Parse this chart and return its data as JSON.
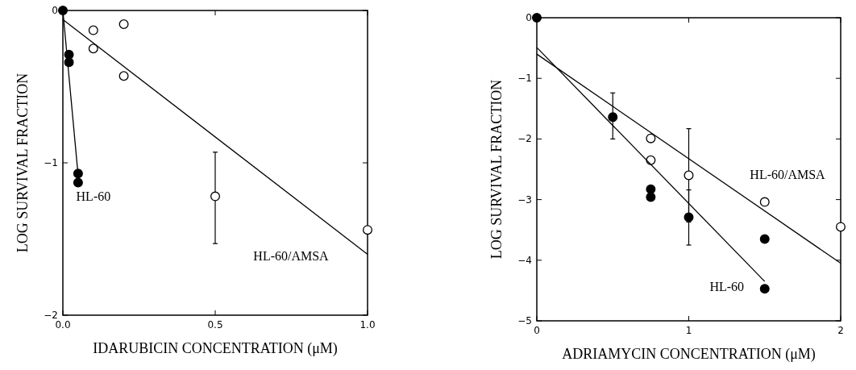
{
  "chart_data": [
    {
      "type": "scatter",
      "xlabel": "IDARUBICIN CONCENTRATION (μM)",
      "ylabel": "LOG SURVIVAL FRACTION",
      "xlim": [
        0,
        1
      ],
      "ylim": [
        -2,
        0
      ],
      "xticks": [
        {
          "value": 0,
          "label": "0.0"
        },
        {
          "value": 0.5,
          "label": "0.5"
        },
        {
          "value": 1,
          "label": "1.0"
        }
      ],
      "yticks": [
        -2,
        -1,
        0
      ],
      "marker": "circle",
      "grid": false,
      "series": [
        {
          "color": "#000000",
          "x": [
            0,
            0.02,
            0.02,
            0.05,
            0.05
          ],
          "values": [
            0,
            -0.29,
            -0.34,
            -1.07,
            -1.13
          ]
        },
        {
          "color": "#ffffff",
          "x": [
            0.1,
            0.1,
            0.2,
            0.2,
            0.5,
            1
          ],
          "values": [
            -0.13,
            -0.25,
            -0.09,
            -0.43,
            -1.22,
            -1.44
          ],
          "errors": [
            null,
            null,
            null,
            null,
            [
              -1.53,
              -0.93
            ],
            null
          ]
        },
        {
          "type": "line",
          "name": "HL-60",
          "marker": "none",
          "color": "#000000",
          "x": [
            0,
            0.05
          ],
          "values": [
            0,
            -1.08
          ]
        },
        {
          "type": "line",
          "name": "HL-60/AMSA",
          "marker": "none",
          "color": "#000000",
          "x": [
            0,
            1
          ],
          "values": [
            -0.06,
            -1.6
          ]
        }
      ]
    },
    {
      "type": "scatter",
      "xlabel": "ADRIAMYCIN CONCENTRATION (μM)",
      "ylabel": "LOG SURVIVAL FRACTION",
      "xlim": [
        0,
        2
      ],
      "ylim": [
        -5,
        0
      ],
      "xticks": [
        0,
        1,
        2
      ],
      "yticks": [
        -5,
        -4,
        -3,
        -2,
        -1,
        0
      ],
      "marker": "circle",
      "grid": false,
      "series": [
        {
          "color": "#000000",
          "x": [
            0,
            0.5,
            0.75,
            0.75,
            1,
            1.5,
            1.5
          ],
          "values": [
            0,
            -1.64,
            -2.83,
            -2.96,
            -3.29,
            -3.65,
            -4.47
          ],
          "errors": [
            null,
            [
              -2,
              -1.24
            ],
            null,
            null,
            [
              -3.75,
              -2.84
            ],
            null,
            null
          ]
        },
        {
          "color": "#ffffff",
          "x": [
            0.75,
            0.75,
            1,
            1.5,
            2
          ],
          "values": [
            -1.99,
            -2.35,
            -2.6,
            -3.04,
            -3.45
          ],
          "errors": [
            null,
            null,
            [
              -3.37,
              -1.83
            ],
            null,
            null
          ]
        },
        {
          "type": "line",
          "name": "HL-60",
          "marker": "none",
          "color": "#000000",
          "x": [
            0,
            1.5
          ],
          "values": [
            -0.49,
            -4.35
          ]
        },
        {
          "type": "line",
          "name": "HL-60/AMSA",
          "marker": "none",
          "color": "#000000",
          "x": [
            0,
            2
          ],
          "values": [
            -0.6,
            -4.05
          ]
        }
      ]
    }
  ]
}
